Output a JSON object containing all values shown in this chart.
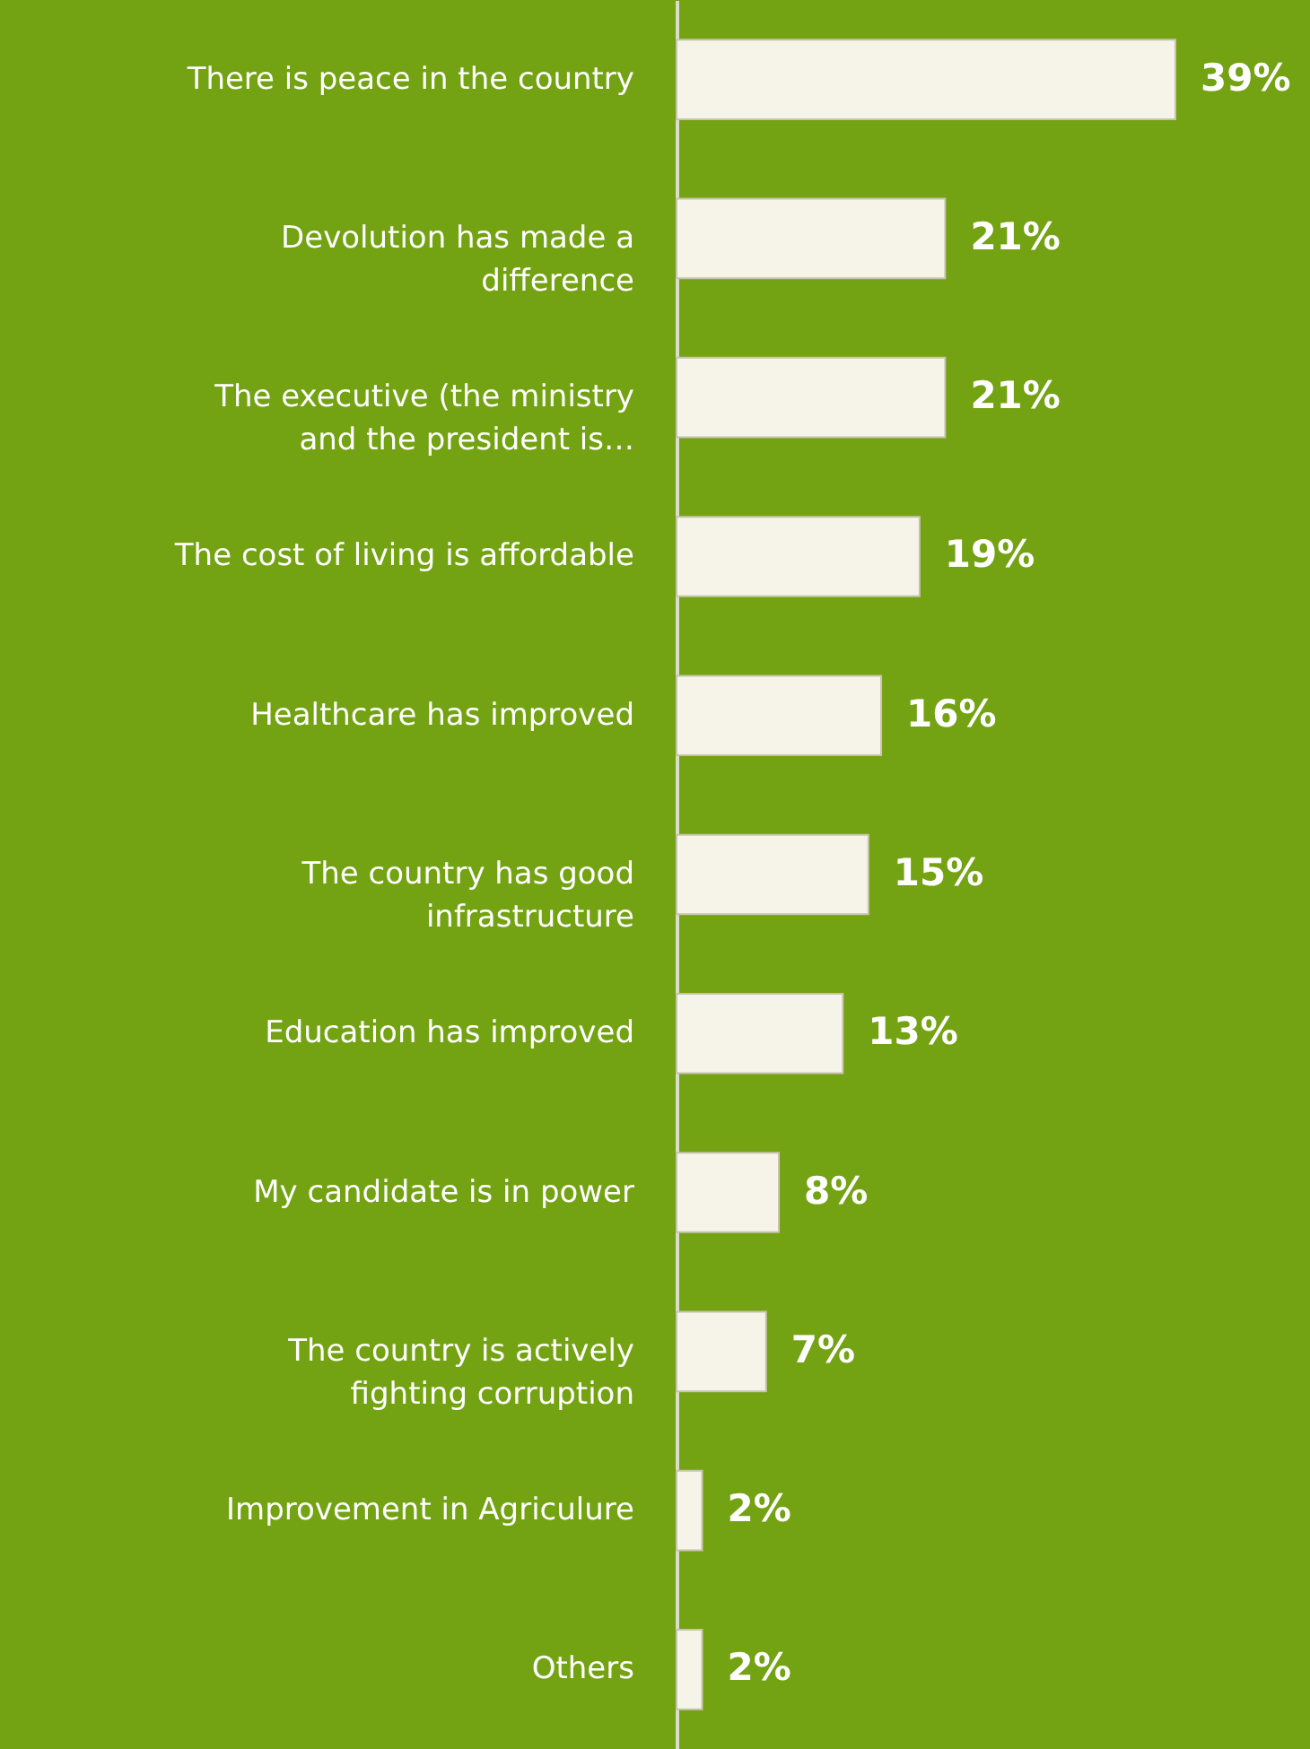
{
  "chart_data": {
    "type": "bar",
    "orientation": "horizontal",
    "categories": [
      "There is peace in the country",
      "Devolution has made a\ndifference",
      "The executive (the ministry\nand the president is…",
      "The cost of living is affordable",
      "Healthcare has improved",
      "The country has good\ninfrastructure",
      "Education has improved",
      "My candidate is in power",
      "The country is actively\nfighting corruption",
      "Improvement in Agriculure",
      "Others"
    ],
    "values": [
      39,
      21,
      21,
      19,
      16,
      15,
      13,
      8,
      7,
      2,
      2
    ],
    "value_labels": [
      "39%",
      "21%",
      "21%",
      "19%",
      "16%",
      "15%",
      "13%",
      "8%",
      "7%",
      "2%",
      "2%"
    ],
    "color": "#f6f3e8",
    "grid": false
  }
}
